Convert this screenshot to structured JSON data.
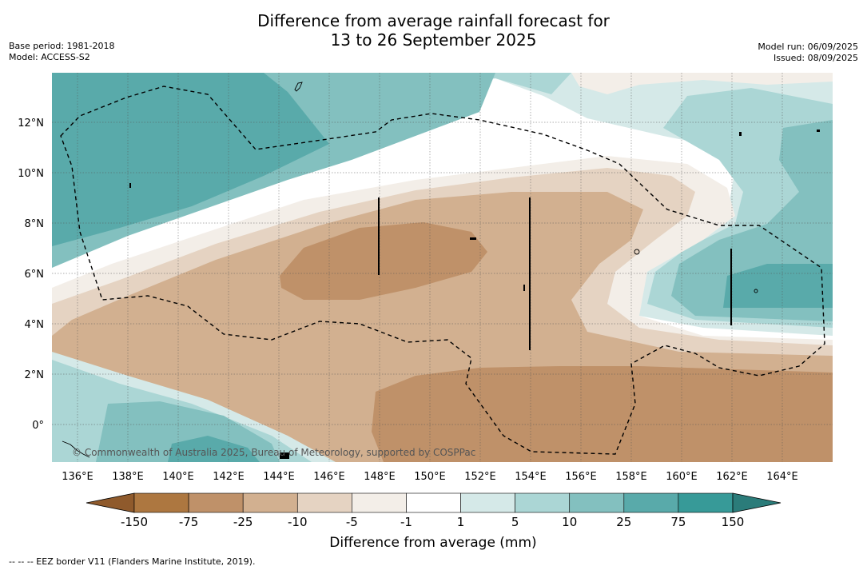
{
  "title_line1": "Difference from average rainfall forecast for",
  "title_line2": "13 to 26 September 2025",
  "meta_left": [
    "Base period: 1981-2018",
    "Model: ACCESS-S2"
  ],
  "meta_right": [
    "Model run: 06/09/2025",
    "Issued: 08/09/2025"
  ],
  "map": {
    "lat_labels": [
      "12°N",
      "10°N",
      "8°N",
      "6°N",
      "4°N",
      "2°N",
      "0°"
    ],
    "lon_labels": [
      "136°E",
      "138°E",
      "140°E",
      "142°E",
      "144°E",
      "146°E",
      "148°E",
      "150°E",
      "152°E",
      "154°E",
      "156°E",
      "158°E",
      "160°E",
      "162°E",
      "164°E"
    ],
    "copyright": "© Commonwealth of Australia 2025, Bureau of Meteorology, supported by COSPPac",
    "border_style": "dashed black"
  },
  "colorbar": {
    "title": "Difference from average (mm)",
    "tick_labels": [
      "-150",
      "-75",
      "-25",
      "-10",
      "-5",
      "-1",
      "1",
      "5",
      "10",
      "25",
      "75",
      "150"
    ],
    "colors": [
      "#8f5a2c",
      "#ad7740",
      "#bf9169",
      "#d2b090",
      "#e5d3c2",
      "#f3eee8",
      "#ffffff",
      "#d5e9e8",
      "#abd6d5",
      "#83c0bf",
      "#59aaaa",
      "#379a98",
      "#2b7c7a"
    ]
  },
  "footnote": "-- -- -- EEZ border V11 (Flanders Marine Institute, 2019)."
}
